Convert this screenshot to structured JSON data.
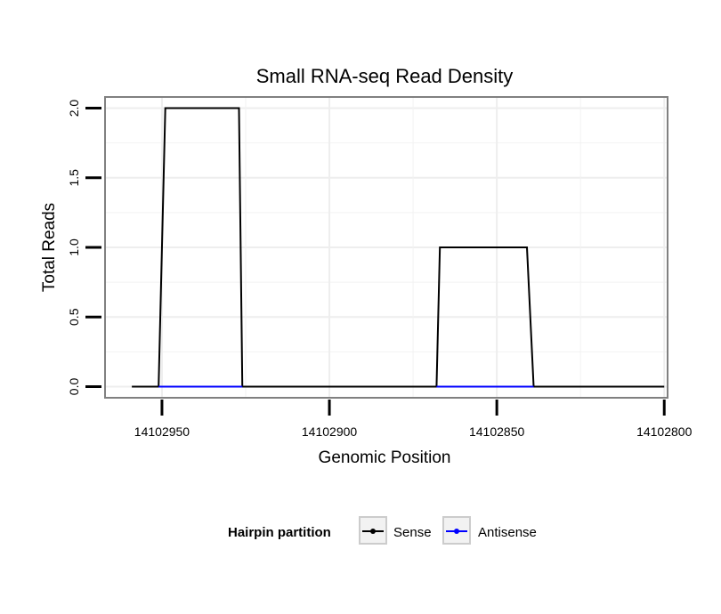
{
  "chart_data": {
    "type": "line",
    "title": "Small RNA-seq Read Density",
    "xlabel": "Genomic Position",
    "ylabel": "Total Reads",
    "x_reversed": true,
    "xlim": [
      14102967,
      14102799
    ],
    "ylim": [
      -0.08,
      2.08
    ],
    "x_ticks": [
      14102950,
      14102900,
      14102850,
      14102800
    ],
    "x_tick_labels": [
      "14102950",
      "14102900",
      "14102850",
      "14102800"
    ],
    "y_ticks": [
      0,
      0.5,
      1,
      1.5,
      2
    ],
    "y_tick_labels": [
      "0.0",
      "0.5",
      "1.0",
      "1.5",
      "2.0"
    ],
    "grid": true,
    "legend": {
      "title": "Hairpin partition",
      "position": "bottom",
      "entries": [
        "Sense",
        "Antisense"
      ]
    },
    "series": [
      {
        "name": "Sense",
        "color": "#000000",
        "x": [
          14102959,
          14102951,
          14102949,
          14102927,
          14102926,
          14102868,
          14102867,
          14102841,
          14102839,
          14102800
        ],
        "y": [
          0,
          0,
          2,
          2,
          0,
          0,
          1,
          1,
          0,
          0
        ]
      },
      {
        "name": "Antisense",
        "color": "#0000ff",
        "x": [
          14102951,
          14102926,
          14102868,
          14102839
        ],
        "y": [
          0,
          0,
          0,
          0
        ],
        "segments": [
          [
            0,
            1
          ],
          [
            2,
            3
          ]
        ]
      }
    ]
  }
}
